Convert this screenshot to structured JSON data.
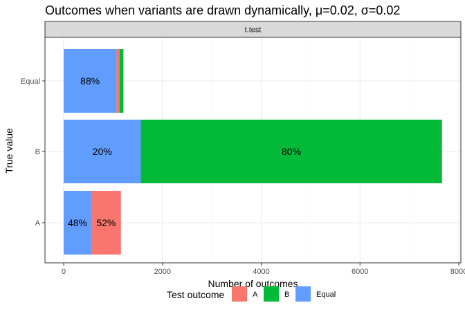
{
  "chart_data": {
    "type": "bar",
    "orientation": "horizontal",
    "stacked": true,
    "title": "Outcomes when variants are drawn dynamically, μ=0.02, σ=0.02",
    "facet_label": "t.test",
    "xlabel": "Number of outcomes",
    "ylabel": "True value",
    "xlim": [
      0,
      8000
    ],
    "x_ticks": [
      0,
      2000,
      4000,
      6000,
      8000
    ],
    "x_tick_labels": [
      "0",
      "2000",
      "4000",
      "6000",
      "8000"
    ],
    "categories": [
      "A",
      "B",
      "Equal"
    ],
    "series": [
      {
        "name": "Equal",
        "color": "#619CFF",
        "values": [
          560,
          1560,
          1070
        ]
      },
      {
        "name": "A",
        "color": "#F8766D",
        "values": [
          600,
          0,
          60
        ]
      },
      {
        "name": "B",
        "color": "#00BA38",
        "values": [
          0,
          6100,
          80
        ]
      }
    ],
    "labels": [
      {
        "category": "A",
        "series": "Equal",
        "text": "48%"
      },
      {
        "category": "A",
        "series": "A",
        "text": "52%"
      },
      {
        "category": "B",
        "series": "Equal",
        "text": "20%"
      },
      {
        "category": "B",
        "series": "B",
        "text": "80%"
      },
      {
        "category": "Equal",
        "series": "Equal",
        "text": "88%"
      }
    ],
    "legend": {
      "title": "Test outcome",
      "position": "bottom",
      "items": [
        {
          "label": "A",
          "color": "#F8766D"
        },
        {
          "label": "B",
          "color": "#00BA38"
        },
        {
          "label": "Equal",
          "color": "#619CFF"
        }
      ]
    },
    "grid": true
  }
}
